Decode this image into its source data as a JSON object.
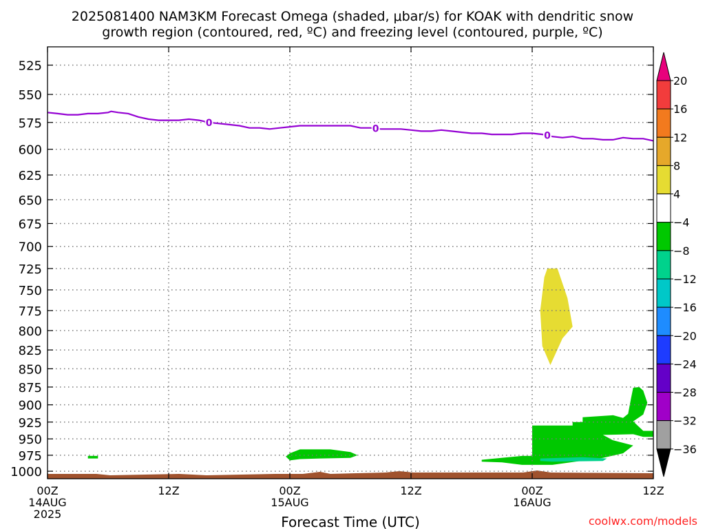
{
  "chart_data": {
    "type": "heatmap",
    "title_line1": "2025081400 NAM3KM Forecast Omega (shaded, μbar/s) for KOAK with dendritic snow",
    "title_line2": "growth region (contoured, red, ºC) and freezing level (contoured, purple, ºC)",
    "xlabel": "Forecast Time (UTC)",
    "ylabel": "",
    "credit": "coolwx.com/models",
    "y_axis": {
      "scale": "log-pressure",
      "range_hpa": [
        1012,
        510
      ],
      "ticks": [
        525,
        550,
        575,
        600,
        625,
        650,
        675,
        700,
        725,
        750,
        775,
        800,
        825,
        850,
        875,
        900,
        925,
        950,
        975,
        1000
      ]
    },
    "x_axis": {
      "range": [
        "2025-08-14T00Z",
        "2025-08-16T12Z"
      ],
      "ticks": [
        {
          "hour": 0,
          "line1": "00Z",
          "line2": "14AUG",
          "line3": "2025"
        },
        {
          "hour": 12,
          "line1": "12Z",
          "line2": "",
          "line3": ""
        },
        {
          "hour": 24,
          "line1": "00Z",
          "line2": "15AUG",
          "line3": ""
        },
        {
          "hour": 36,
          "line1": "12Z",
          "line2": "",
          "line3": ""
        },
        {
          "hour": 48,
          "line1": "00Z",
          "line2": "16AUG",
          "line3": ""
        },
        {
          "hour": 60,
          "line1": "12Z",
          "line2": "",
          "line3": ""
        }
      ]
    },
    "grid": true,
    "colorbar": {
      "labels": [
        "20",
        "16",
        "12",
        "8",
        "4",
        "−4",
        "−8",
        "−12",
        "−16",
        "−20",
        "−24",
        "−28",
        "−32",
        "−36"
      ],
      "colors": [
        "#e8007c",
        "#f23c3c",
        "#f27a1e",
        "#e6a82a",
        "#e6dc32",
        "#ffffff",
        "#00c800",
        "#00d28c",
        "#00c8c8",
        "#1e8cff",
        "#1e3cff",
        "#6400c8",
        "#a000c8",
        "#a0a0a0",
        "#000000"
      ]
    },
    "freezing_level": {
      "label": "0",
      "color": "#9400d3",
      "points": [
        [
          0,
          566
        ],
        [
          1,
          567
        ],
        [
          2,
          568
        ],
        [
          3,
          568
        ],
        [
          4,
          567
        ],
        [
          5,
          567
        ],
        [
          6,
          566
        ],
        [
          6.3,
          565
        ],
        [
          7,
          566
        ],
        [
          8,
          567
        ],
        [
          9,
          570
        ],
        [
          10,
          572
        ],
        [
          11,
          573
        ],
        [
          12,
          573
        ],
        [
          13,
          573
        ],
        [
          14,
          572
        ],
        [
          15,
          573
        ],
        [
          16,
          575
        ],
        [
          17,
          576
        ],
        [
          18,
          577
        ],
        [
          19,
          578
        ],
        [
          20,
          580
        ],
        [
          21,
          580
        ],
        [
          22,
          581
        ],
        [
          23,
          580
        ],
        [
          24,
          579
        ],
        [
          25,
          578
        ],
        [
          26,
          578
        ],
        [
          27,
          578
        ],
        [
          28,
          578
        ],
        [
          29,
          578
        ],
        [
          30,
          578
        ],
        [
          31,
          580
        ],
        [
          32,
          580
        ],
        [
          33,
          581
        ],
        [
          34,
          581
        ],
        [
          35,
          581
        ],
        [
          36,
          582
        ],
        [
          37,
          583
        ],
        [
          38,
          583
        ],
        [
          39,
          582
        ],
        [
          40,
          583
        ],
        [
          41,
          584
        ],
        [
          42,
          585
        ],
        [
          43,
          585
        ],
        [
          44,
          586
        ],
        [
          45,
          586
        ],
        [
          46,
          586
        ],
        [
          47,
          585
        ],
        [
          48,
          585
        ],
        [
          49,
          586
        ],
        [
          50,
          588
        ],
        [
          51,
          589
        ],
        [
          52,
          588
        ],
        [
          53,
          590
        ],
        [
          54,
          590
        ],
        [
          55,
          591
        ],
        [
          56,
          591
        ],
        [
          57,
          589
        ],
        [
          58,
          590
        ],
        [
          59,
          590
        ],
        [
          60,
          592
        ]
      ],
      "label_hours": [
        16,
        32.5,
        49.5
      ]
    },
    "omega_areas": [
      {
        "value_range": "-8 to -4",
        "color": "#00c800",
        "outline": [
          [
            4,
            976
          ],
          [
            5,
            976
          ],
          [
            5,
            980
          ],
          [
            4,
            980
          ]
        ]
      },
      {
        "value_range": "-8 to -4",
        "color": "#00c800",
        "outline": [
          [
            24,
            972
          ],
          [
            25,
            966
          ],
          [
            28,
            966
          ],
          [
            30,
            970
          ],
          [
            30.7,
            975
          ],
          [
            30,
            979
          ],
          [
            27,
            980
          ],
          [
            25,
            981
          ],
          [
            24,
            983
          ],
          [
            23.6,
            977
          ]
        ]
      },
      {
        "value_range": "4 to 8",
        "color": "#e6dc32",
        "outline": [
          [
            49.5,
            725
          ],
          [
            50.5,
            725
          ],
          [
            51.5,
            760
          ],
          [
            52,
            795
          ],
          [
            51,
            810
          ],
          [
            49.8,
            845
          ],
          [
            49,
            820
          ],
          [
            48.8,
            775
          ],
          [
            49.2,
            735
          ]
        ]
      },
      {
        "value_range": "-8 to -4",
        "color": "#00c800",
        "outline": [
          [
            43,
            982
          ],
          [
            47,
            976
          ],
          [
            48,
            976
          ],
          [
            48,
            930
          ],
          [
            52,
            930
          ],
          [
            52,
            925
          ],
          [
            53,
            925
          ],
          [
            53,
            918
          ],
          [
            56,
            915
          ],
          [
            57,
            919
          ],
          [
            57.5,
            913
          ],
          [
            57.8,
            890
          ],
          [
            58,
            876
          ],
          [
            58.6,
            875
          ],
          [
            59,
            880
          ],
          [
            59.4,
            897
          ],
          [
            59,
            914
          ],
          [
            58,
            924
          ],
          [
            59,
            938
          ],
          [
            60,
            938
          ],
          [
            60,
            947
          ],
          [
            59,
            947
          ],
          [
            58,
            943
          ],
          [
            55,
            944
          ],
          [
            56,
            952
          ],
          [
            58,
            960
          ],
          [
            57,
            972
          ],
          [
            55,
            979
          ],
          [
            50,
            990
          ],
          [
            49,
            990
          ],
          [
            47,
            990
          ],
          [
            45,
            986
          ],
          [
            43,
            985
          ]
        ]
      },
      {
        "value_range": "-12 to -8",
        "color": "#00d28c",
        "outline": [
          [
            48.8,
            980
          ],
          [
            53,
            978
          ],
          [
            55.4,
            980
          ],
          [
            55,
            984
          ],
          [
            50,
            985
          ],
          [
            48.8,
            984
          ]
        ]
      }
    ],
    "terrain_color": "#a0522d"
  }
}
